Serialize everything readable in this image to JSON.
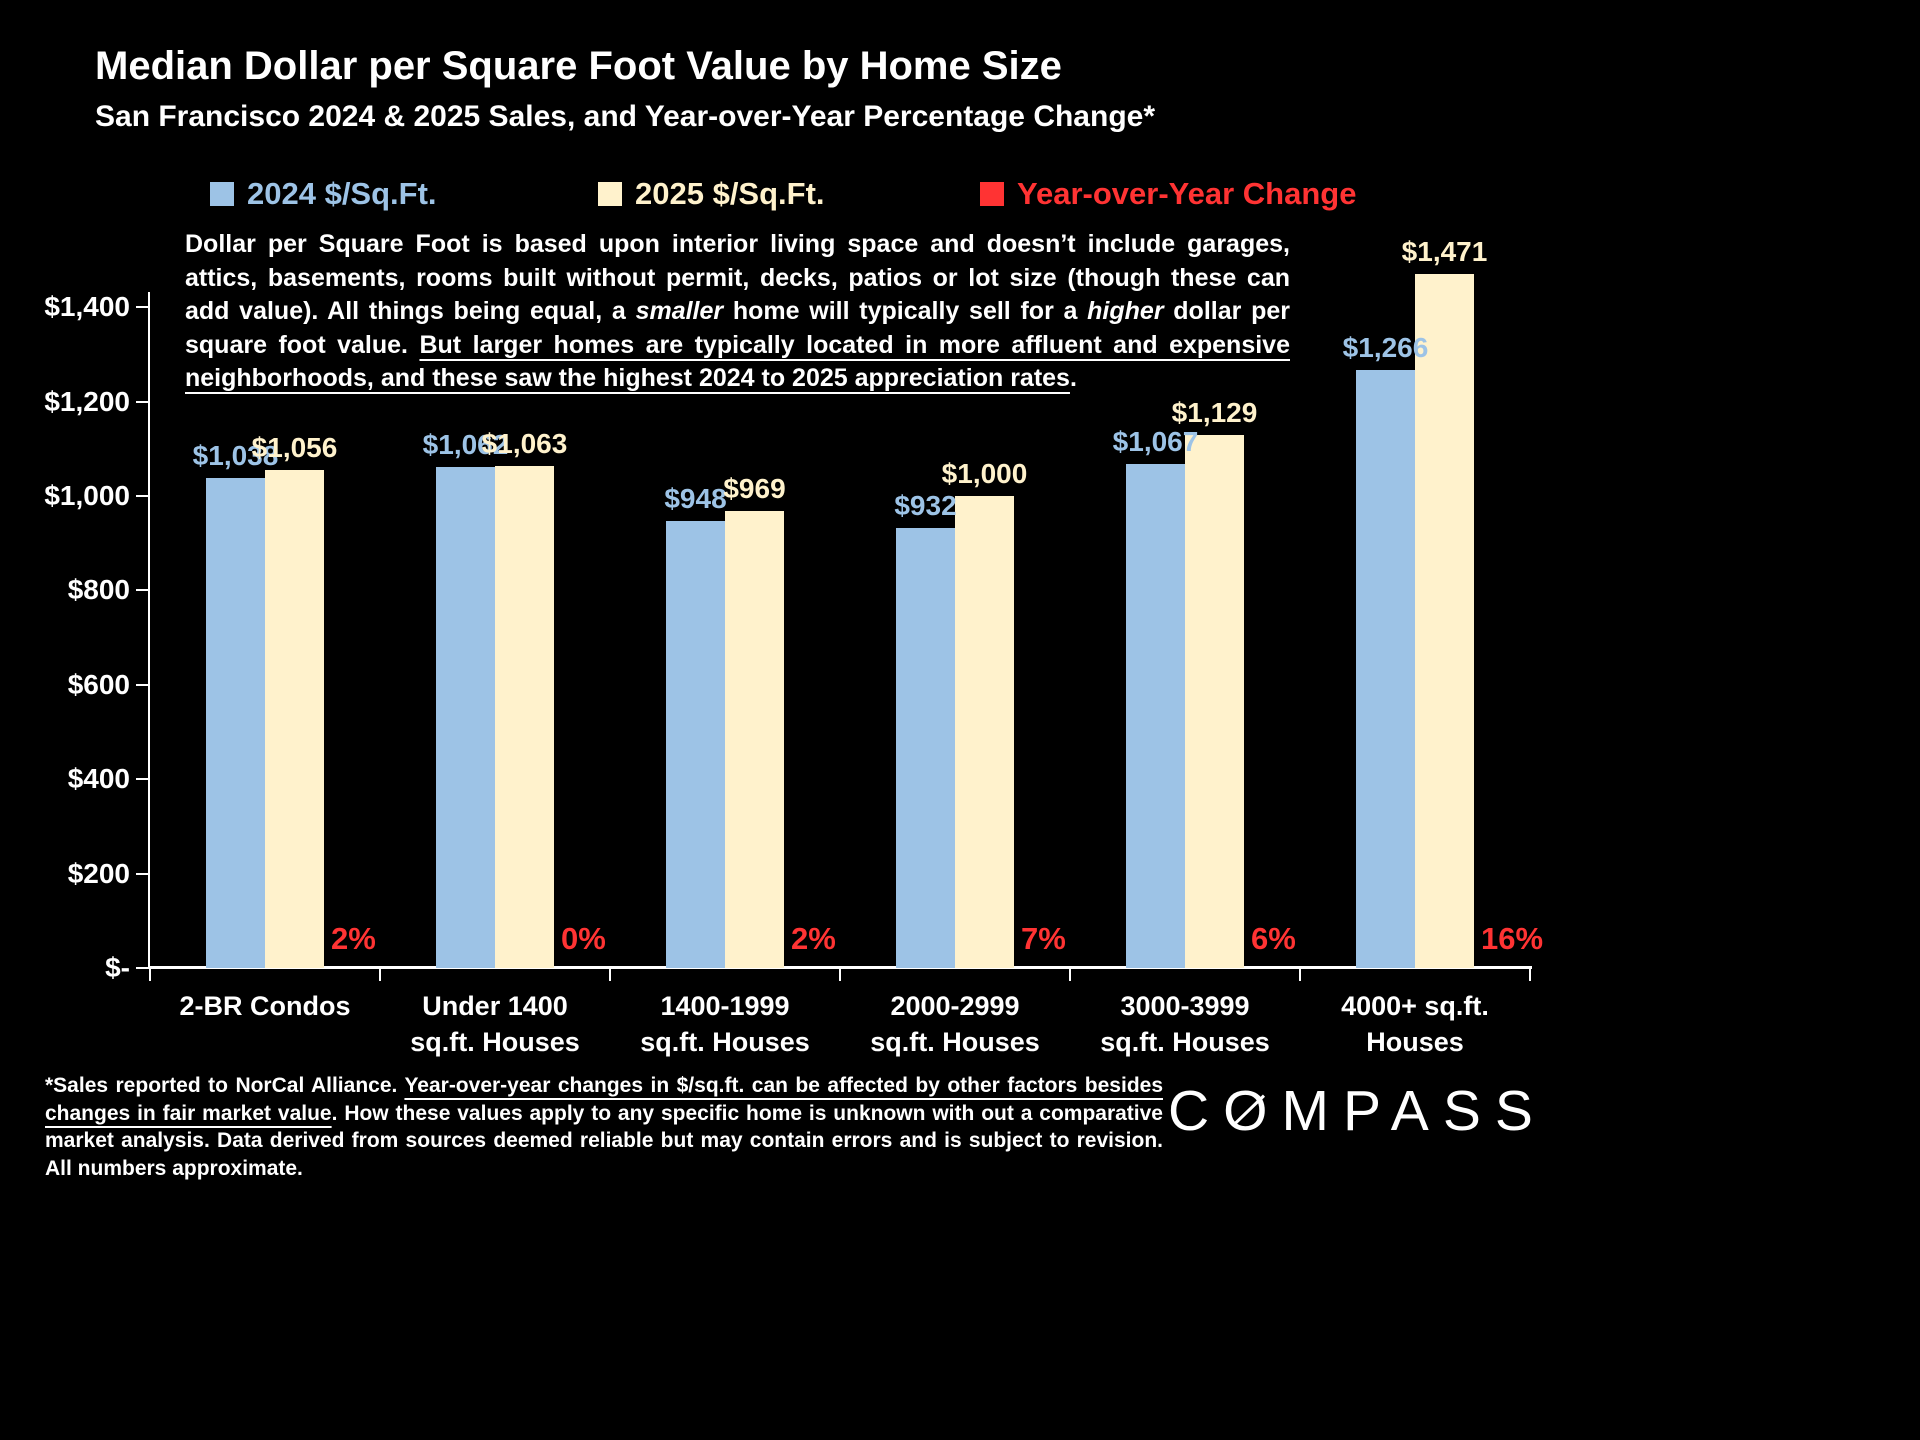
{
  "title": "Median Dollar per Square Foot Value by Home Size",
  "subtitle": "San Francisco 2024 & 2025 Sales, and Year-over-Year Percentage Change*",
  "legend": [
    {
      "label": "2024 $/Sq.Ft.",
      "color": "#9DC3E6"
    },
    {
      "label": "2025 $/Sq.Ft.",
      "color": "#FFF2CC"
    },
    {
      "label": "Year-over-Year Change",
      "color": "#FF3333"
    }
  ],
  "annotation": {
    "segments": [
      {
        "text": "Dollar per Square Foot is based upon interior living space and doesn’t include garages, attics, basements, rooms built without permit, decks, patios or lot size (though these can add value). All things being equal, a ",
        "style": "normal"
      },
      {
        "text": "smaller",
        "style": "italic"
      },
      {
        "text": " home will typically sell for a ",
        "style": "normal"
      },
      {
        "text": "higher",
        "style": "italic"
      },
      {
        "text": " dollar per square foot value. ",
        "style": "normal"
      },
      {
        "text": "But larger homes are typically located in more affluent and expensive neighborhoods, and these saw the highest 2024 to 2025 appreciation rates",
        "style": "underline"
      },
      {
        "text": ".",
        "style": "normal"
      }
    ]
  },
  "chart_data": {
    "type": "bar",
    "title": "Median Dollar per Square Foot Value by Home Size",
    "subtitle": "San Francisco 2024 & 2025 Sales, and Year-over-Year Percentage Change*",
    "grid": false,
    "legend_position": "top",
    "categories": [
      [
        "2-BR Condos"
      ],
      [
        "Under 1400",
        "sq.ft. Houses"
      ],
      [
        "1400-1999",
        "sq.ft. Houses"
      ],
      [
        "2000-2999",
        "sq.ft. Houses"
      ],
      [
        "3000-3999",
        "sq.ft. Houses"
      ],
      [
        "4000+ sq.ft.",
        "Houses"
      ]
    ],
    "series": [
      {
        "name": "2024 $/Sq.Ft.",
        "color": "#9DC3E6",
        "values": [
          1038,
          1062,
          948,
          932,
          1067,
          1266
        ],
        "labels": [
          "$1,038",
          "$1,062",
          "$948",
          "$932",
          "$1,067",
          "$1,266"
        ]
      },
      {
        "name": "2025 $/Sq.Ft.",
        "color": "#FFF2CC",
        "values": [
          1056,
          1063,
          969,
          1000,
          1129,
          1471
        ],
        "labels": [
          "$1,056",
          "$1,063",
          "$969",
          "$1,000",
          "$1,129",
          "$1,471"
        ]
      }
    ],
    "yoy_series": {
      "name": "Year-over-Year Change",
      "color": "#FF3333",
      "values": [
        2,
        0,
        2,
        7,
        6,
        16
      ],
      "labels": [
        "2%",
        "0%",
        "2%",
        "7%",
        "6%",
        "16%"
      ]
    },
    "y_axis": {
      "ylabel": "",
      "ylim": [
        0,
        1500
      ],
      "ticks": [
        {
          "label": "$1,400",
          "value": 1400
        },
        {
          "label": "$1,200",
          "value": 1200
        },
        {
          "label": "$1,000",
          "value": 1000
        },
        {
          "label": "$800",
          "value": 800
        },
        {
          "label": "$600",
          "value": 600
        },
        {
          "label": "$400",
          "value": 400
        },
        {
          "label": "$200",
          "value": 200
        },
        {
          "label": "$-",
          "value": 0
        }
      ]
    }
  },
  "footnote": {
    "segments": [
      {
        "text": "*Sales reported to NorCal Alliance. ",
        "style": "normal"
      },
      {
        "text": "Year-over-year changes in $/sq.ft. can be affected by other factors besides changes in fair market value",
        "style": "underline"
      },
      {
        "text": ". How these values apply to any specific home is unknown with out a comparative market analysis. Data derived from sources deemed reliable but may contain errors and is subject to revision. All numbers  approximate.",
        "style": "normal"
      }
    ]
  },
  "logo": {
    "text": "COMPASS"
  }
}
